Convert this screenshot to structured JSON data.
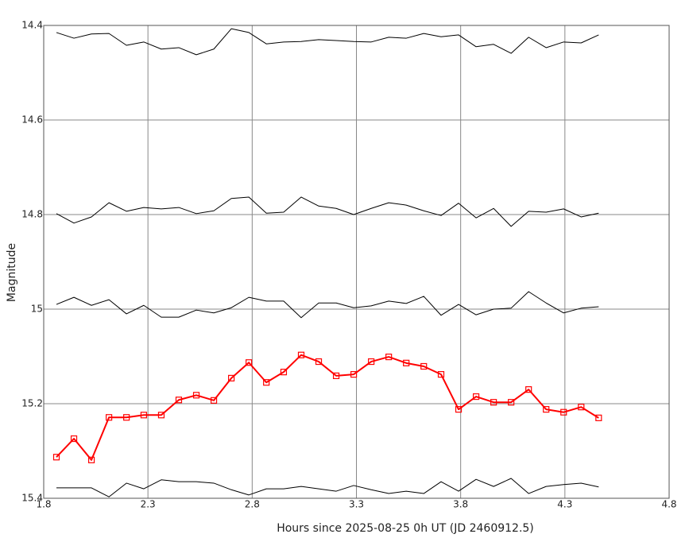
{
  "chart_data": {
    "type": "line",
    "x_label": "Hours since 2025-08-25 0h UT (JD 2460912.5)",
    "y_label": "Magnitude",
    "xlim": [
      1.8,
      4.8
    ],
    "xticks": [
      1.8,
      2.3,
      2.8,
      3.3,
      3.8,
      4.3,
      4.8
    ],
    "ylim": [
      14.4,
      15.4
    ],
    "yticks": [
      14.4,
      14.6,
      14.8,
      15,
      15.2,
      15.4
    ],
    "y_inverted": true,
    "grid": true,
    "x": [
      1.861,
      1.945,
      2.029,
      2.113,
      2.197,
      2.28,
      2.364,
      2.448,
      2.532,
      2.616,
      2.7,
      2.784,
      2.868,
      2.951,
      3.035,
      3.119,
      3.203,
      3.287,
      3.371,
      3.455,
      3.539,
      3.623,
      3.706,
      3.79,
      3.874,
      3.958,
      4.042,
      4.126,
      4.21,
      4.294,
      4.378,
      4.462
    ],
    "series": [
      {
        "color": "#000000",
        "width": 1,
        "values": [
          14.415,
          14.427,
          14.418,
          14.417,
          14.442,
          14.435,
          14.45,
          14.447,
          14.462,
          14.45,
          14.407,
          14.415,
          14.439,
          14.435,
          14.434,
          14.43,
          14.432,
          14.434,
          14.435,
          14.425,
          14.427,
          14.417,
          14.424,
          14.42,
          14.445,
          14.44,
          14.459,
          14.425,
          14.447,
          14.435,
          14.437,
          14.42
        ]
      },
      {
        "color": "#000000",
        "width": 1,
        "values": [
          14.798,
          14.818,
          14.805,
          14.775,
          14.793,
          14.785,
          14.788,
          14.785,
          14.798,
          14.792,
          14.766,
          14.763,
          14.797,
          14.795,
          14.763,
          14.782,
          14.787,
          14.8,
          14.787,
          14.775,
          14.78,
          14.792,
          14.802,
          14.776,
          14.807,
          14.787,
          14.825,
          14.793,
          14.795,
          14.788,
          14.805,
          14.797
        ]
      },
      {
        "color": "#000000",
        "width": 1,
        "values": [
          14.99,
          14.975,
          14.992,
          14.98,
          15.01,
          14.992,
          15.017,
          15.017,
          15.002,
          15.008,
          14.997,
          14.975,
          14.983,
          14.983,
          15.018,
          14.987,
          14.987,
          14.997,
          14.993,
          14.983,
          14.988,
          14.973,
          15.013,
          14.99,
          15.012,
          15.0,
          14.998,
          14.963,
          14.987,
          15.008,
          14.998,
          14.995
        ]
      },
      {
        "color": "#ff0000",
        "width": 2,
        "marker": "square",
        "values": [
          15.313,
          15.274,
          15.319,
          15.229,
          15.229,
          15.224,
          15.224,
          15.192,
          15.182,
          15.193,
          15.146,
          15.113,
          15.155,
          15.133,
          15.097,
          15.111,
          15.141,
          15.138,
          15.111,
          15.101,
          15.114,
          15.121,
          15.138,
          15.212,
          15.185,
          15.197,
          15.197,
          15.17,
          15.212,
          15.218,
          15.207,
          15.23
        ]
      },
      {
        "color": "#000000",
        "width": 1,
        "values": [
          15.378,
          15.378,
          15.378,
          15.397,
          15.368,
          15.38,
          15.361,
          15.365,
          15.365,
          15.368,
          15.382,
          15.393,
          15.38,
          15.38,
          15.375,
          15.38,
          15.385,
          15.373,
          15.382,
          15.39,
          15.385,
          15.39,
          15.365,
          15.385,
          15.36,
          15.375,
          15.358,
          15.39,
          15.375,
          15.371,
          15.368,
          15.376
        ]
      }
    ]
  }
}
